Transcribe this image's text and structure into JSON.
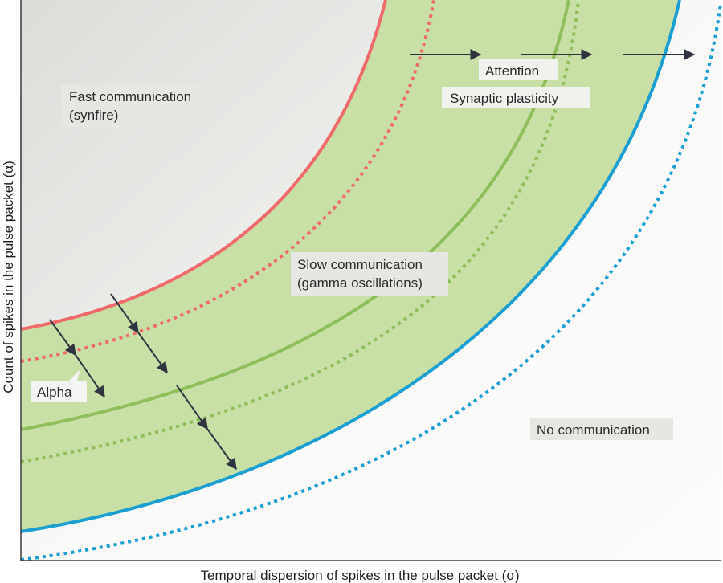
{
  "axes": {
    "x_label": "Temporal dispersion of spikes in the pulse packet (σ)",
    "y_label": "Count of spikes in the pulse packet (α)"
  },
  "regions": {
    "fast_line1": "Fast communication",
    "fast_line2": "(synfire)",
    "slow_line1": "Slow communication",
    "slow_line2": "(gamma oscillations)",
    "none": "No communication"
  },
  "annotations": {
    "attention": "Attention",
    "plasticity": "Synaptic plasticity",
    "alpha": "Alpha"
  },
  "colors": {
    "fast_boundary": "#ef6b6b",
    "slow_band": "#c8e0a6",
    "gamma_curve": "#8fbf5a",
    "slow_boundary": "#1a9fd0",
    "arrows": "#2f3440",
    "label_box": "#e6e6e3"
  }
}
